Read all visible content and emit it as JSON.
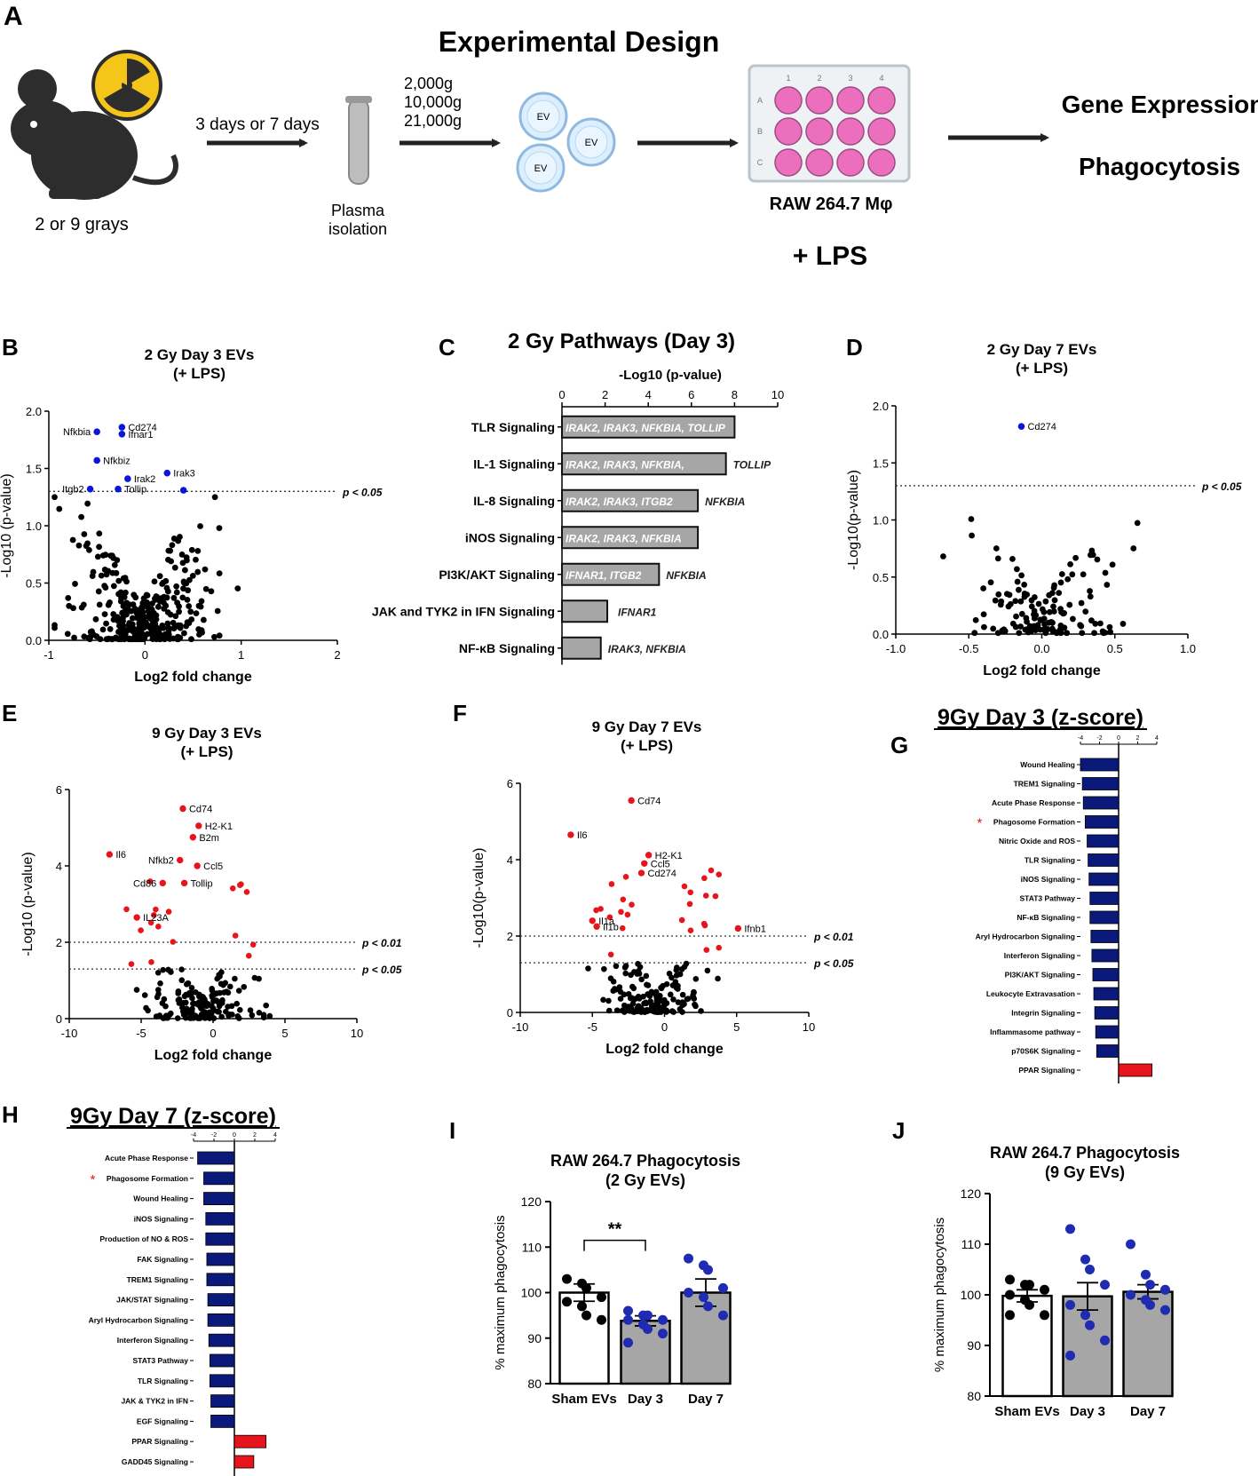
{
  "panel_letters": {
    "a": "A",
    "b": "B",
    "c": "C",
    "d": "D",
    "e": "E",
    "f": "F",
    "g": "G",
    "h": "H",
    "i": "I",
    "j": "J"
  },
  "colors": {
    "blue": "#0a16d8",
    "red": "#e8141c",
    "navy": "#0b1a7a",
    "bar_red": "#e8141c",
    "gray_bar": "#a6a6a6",
    "dot": "#000000",
    "pink": "#ec6fbe",
    "dark_blue_dot": "#1f2bb0"
  },
  "design": {
    "title": "Experimental Design",
    "dose": "2 or 9 grays",
    "timepoint": "3 days or 7 days",
    "plasma": [
      "Plasma",
      "isolation"
    ],
    "spins": [
      "2,000g",
      "10,000g",
      "21,000g"
    ],
    "ev_label": "EV",
    "plate_cols": [
      "1",
      "2",
      "3",
      "4"
    ],
    "plate_rows": [
      "A",
      "B",
      "C"
    ],
    "cell_line": "RAW 264.7 Mφ",
    "stim": "+ LPS",
    "outcomes": [
      "Gene Expression",
      "Phagocytosis"
    ]
  },
  "chart_data": [
    {
      "id": "B",
      "type": "scatter",
      "title": [
        "2 Gy Day 3 EVs",
        "(+ LPS)"
      ],
      "xlabel": "Log2 fold change",
      "ylabel": "-Log10 (p-value)",
      "xlim": [
        -1,
        2
      ],
      "ylim": [
        0,
        2
      ],
      "xticks": [
        -1,
        0,
        1,
        2
      ],
      "yticks": [
        0.0,
        0.5,
        1.0,
        1.5,
        2.0
      ],
      "thresholds": [
        {
          "y": 1.3,
          "label": "p < 0.05"
        }
      ],
      "labeled_points": [
        {
          "label": "Cd274",
          "x": -0.24,
          "y": 1.86
        },
        {
          "label": "Ifnar1",
          "x": -0.24,
          "y": 1.8
        },
        {
          "label": "Nfkbia",
          "x": -0.5,
          "y": 1.82
        },
        {
          "label": "Nfkbiz",
          "x": -0.5,
          "y": 1.57
        },
        {
          "label": "Irak2",
          "x": -0.18,
          "y": 1.41
        },
        {
          "label": "Irak3",
          "x": 0.23,
          "y": 1.46
        },
        {
          "label": "Itgb2",
          "x": -0.57,
          "y": 1.32
        },
        {
          "label": "Tollip",
          "x": -0.28,
          "y": 1.32
        },
        {
          "label": "",
          "x": 0.4,
          "y": 1.31
        }
      ]
    },
    {
      "id": "C",
      "type": "bar",
      "title": "2 Gy Pathways (Day 3)",
      "axis_label": "-Log10 (p-value)",
      "xlim": [
        0,
        10
      ],
      "xticks": [
        0,
        2,
        4,
        6,
        8,
        10
      ],
      "categories": [
        "TLR Signaling",
        "IL-1 Signaling",
        "IL-8 Signaling",
        "iNOS Signaling",
        "PI3K/AKT Signaling",
        "JAK and TYK2 in IFN Signaling",
        "NF-κB Signaling"
      ],
      "values": [
        8.0,
        7.6,
        6.3,
        6.3,
        4.5,
        2.1,
        1.8
      ],
      "genes_inside": [
        "IRAK2, IRAK3, NFKBIA, TOLLIP",
        "IRAK2, IRAK3, NFKBIA,",
        "IRAK2, IRAK3, ITGB2",
        "IRAK2, IRAK3, NFKBIA",
        "IFNAR1, ITGB2",
        "",
        ""
      ],
      "genes_outside": [
        "",
        "TOLLIP",
        "NFKBIA",
        "",
        "NFKBIA",
        "IFNAR1",
        "IRAK3, NFKBIA"
      ]
    },
    {
      "id": "D",
      "type": "scatter",
      "title": [
        "2 Gy Day 7 EVs",
        "(+ LPS)"
      ],
      "xlabel": "Log2 fold change",
      "ylabel": "-Log10(p-value)",
      "xlim": [
        -1,
        1
      ],
      "ylim": [
        0,
        2
      ],
      "xticks": [
        -1.0,
        -0.5,
        0.0,
        0.5,
        1.0
      ],
      "yticks": [
        0.0,
        0.5,
        1.0,
        1.5,
        2.0
      ],
      "thresholds": [
        {
          "y": 1.3,
          "label": "p < 0.05"
        }
      ],
      "labeled_points": [
        {
          "label": "Cd274",
          "x": -0.14,
          "y": 1.82
        }
      ]
    },
    {
      "id": "E",
      "type": "scatter",
      "title": [
        "9 Gy Day 3 EVs",
        "(+ LPS)"
      ],
      "xlabel": "Log2 fold change",
      "ylabel": "-Log10 (p-value)",
      "xlim": [
        -10,
        10
      ],
      "ylim": [
        0,
        6
      ],
      "xticks": [
        -10,
        -5,
        0,
        5,
        10
      ],
      "yticks": [
        0,
        2,
        4,
        6
      ],
      "thresholds": [
        {
          "y": 2.0,
          "label": "p < 0.01"
        },
        {
          "y": 1.3,
          "label": "p < 0.05"
        }
      ],
      "labeled_points": [
        {
          "label": "Cd74",
          "x": -2.1,
          "y": 5.5
        },
        {
          "label": "H2-K1",
          "x": -1.0,
          "y": 5.05
        },
        {
          "label": "B2m",
          "x": -1.4,
          "y": 4.75
        },
        {
          "label": "Ccl5",
          "x": -1.1,
          "y": 4.0
        },
        {
          "label": "Nfkb2",
          "x": -2.3,
          "y": 4.15
        },
        {
          "label": "Il6",
          "x": -7.2,
          "y": 4.3
        },
        {
          "label": "Cd86",
          "x": -3.5,
          "y": 3.55
        },
        {
          "label": "Tollip",
          "x": -2.0,
          "y": 3.55
        },
        {
          "label": "IL23A",
          "x": -5.3,
          "y": 2.65
        }
      ]
    },
    {
      "id": "F",
      "type": "scatter",
      "title": [
        "9 Gy Day 7 EVs",
        "(+ LPS)"
      ],
      "xlabel": "Log2 fold change",
      "ylabel": "-Log10(p-value)",
      "xlim": [
        -10,
        10
      ],
      "ylim": [
        0,
        6
      ],
      "xticks": [
        -10,
        -5,
        0,
        5,
        10
      ],
      "yticks": [
        0,
        2,
        4,
        6
      ],
      "thresholds": [
        {
          "y": 2.0,
          "label": "p < 0.01"
        },
        {
          "y": 1.3,
          "label": "p < 0.05"
        }
      ],
      "labeled_points": [
        {
          "label": "Cd74",
          "x": -2.3,
          "y": 5.55
        },
        {
          "label": "Il6",
          "x": -6.5,
          "y": 4.65
        },
        {
          "label": "H2-K1",
          "x": -1.1,
          "y": 4.12
        },
        {
          "label": "Ccl5",
          "x": -1.4,
          "y": 3.9
        },
        {
          "label": "Cd274",
          "x": -1.6,
          "y": 3.65
        },
        {
          "label": "Il1a",
          "x": -5.0,
          "y": 2.4
        },
        {
          "label": "Il1b",
          "x": -4.7,
          "y": 2.25
        },
        {
          "label": "Ifnb1",
          "x": 5.1,
          "y": 2.2
        }
      ]
    },
    {
      "id": "G",
      "type": "bar",
      "title": "9Gy Day 3 (z-score)",
      "xlim": [
        -4,
        4
      ],
      "xticks": [
        -4,
        -2,
        0,
        2,
        4
      ],
      "starred": "Phagosome Formation",
      "categories": [
        "Wound Healing",
        "TREM1 Signaling",
        "Acute Phase Response",
        "Phagosome Formation",
        "Nitric Oxide and ROS",
        "TLR Signaling",
        "iNOS Signaling",
        "STAT3 Pathway",
        "NF-κB Signaling",
        "Aryl Hydrocarbon Signaling",
        "Interferon Signaling",
        "PI3K/AKT Signaling",
        "Leukocyte Extravasation",
        "Integrin Signaling",
        "Inflammasome pathway",
        "p70S6K Signaling",
        "PPAR Signaling"
      ],
      "values": [
        -4.0,
        -3.8,
        -3.7,
        -3.5,
        -3.3,
        -3.2,
        -3.1,
        -3.0,
        -3.0,
        -2.9,
        -2.8,
        -2.7,
        -2.6,
        -2.5,
        -2.4,
        -2.3,
        3.5
      ]
    },
    {
      "id": "H",
      "type": "bar",
      "title": "9Gy Day 7 (z-score)",
      "xlim": [
        -4,
        4
      ],
      "xticks": [
        -4,
        -2,
        0,
        2,
        4
      ],
      "starred": "Phagosome Formation",
      "categories": [
        "Acute Phase Response",
        "Phagosome Formation",
        "Wound Healing",
        "iNOS Signaling",
        "Production of NO & ROS",
        "FAK Signaling",
        "TREM1 Signaling",
        "JAK/STAT Signaling",
        "Aryl Hydrocarbon Signaling",
        "Interferon Signaling",
        "STAT3 Pathway",
        "TLR Signaling",
        "JAK & TYK2 in IFN",
        "EGF Signaling",
        "PPAR Signaling",
        "GADD45 Signaling"
      ],
      "values": [
        -3.6,
        -3.0,
        -3.0,
        -2.8,
        -2.8,
        -2.7,
        -2.7,
        -2.6,
        -2.6,
        -2.5,
        -2.4,
        -2.4,
        -2.3,
        -2.3,
        3.1,
        1.9
      ]
    },
    {
      "id": "I",
      "type": "bar",
      "title": [
        "RAW 264.7 Phagocytosis",
        "(2 Gy EVs)"
      ],
      "ylabel": "% maximum phagocytosis",
      "ylim": [
        80,
        120
      ],
      "yticks": [
        80,
        90,
        100,
        110,
        120
      ],
      "categories": [
        "Sham EVs",
        "Day 3",
        "Day 7"
      ],
      "values": [
        100,
        93.8,
        100
      ],
      "sem": [
        1.9,
        1.1,
        3.0
      ],
      "points": [
        [
          103,
          102,
          101,
          99,
          98,
          97,
          95,
          94
        ],
        [
          96,
          95,
          95,
          94,
          94,
          93,
          92,
          91,
          89
        ],
        [
          107.5,
          106,
          105,
          101,
          100,
          99,
          97,
          95
        ]
      ],
      "significance": {
        "from": 0,
        "to": 1,
        "label": "**"
      }
    },
    {
      "id": "J",
      "type": "bar",
      "title": [
        "RAW 264.7 Phagocytosis",
        "(9 Gy EVs)"
      ],
      "ylabel": "% maximum phagocytosis",
      "ylim": [
        80,
        120
      ],
      "yticks": [
        80,
        90,
        100,
        110,
        120
      ],
      "categories": [
        "Sham EVs",
        "Day 3",
        "Day 7"
      ],
      "values": [
        99.8,
        99.7,
        100.6
      ],
      "sem": [
        1.2,
        2.7,
        1.4
      ],
      "points": [
        [
          103,
          102,
          102,
          101,
          100,
          99,
          98,
          96,
          96
        ],
        [
          113,
          107,
          105,
          102,
          98,
          96,
          94,
          91,
          88
        ],
        [
          110,
          104,
          102,
          101,
          100,
          99,
          98,
          97
        ]
      ]
    }
  ]
}
